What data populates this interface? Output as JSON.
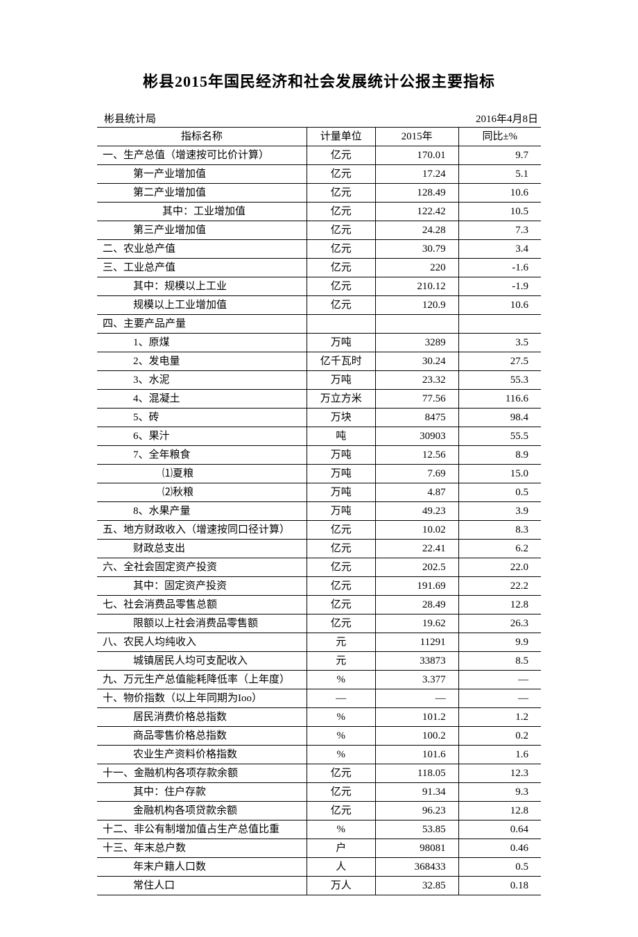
{
  "title": "彬县2015年国民经济和社会发展统计公报主要指标",
  "meta": {
    "org": "彬县统计局",
    "date": "2016年4月8日"
  },
  "columns": {
    "name": "指标名称",
    "unit": "计量单位",
    "v2015": "2015年",
    "yoy": "同比±%"
  },
  "rows": [
    {
      "indent": 0,
      "name": "一、生产总值（增速按可比价计算）",
      "unit": "亿元",
      "v2015": "170.01",
      "yoy": "9.7"
    },
    {
      "indent": 1,
      "name": "第一产业增加值",
      "unit": "亿元",
      "v2015": "17.24",
      "yoy": "5.1"
    },
    {
      "indent": 1,
      "name": "第二产业增加值",
      "unit": "亿元",
      "v2015": "128.49",
      "yoy": "10.6"
    },
    {
      "indent": 2,
      "name": "其中：工业增加值",
      "unit": "亿元",
      "v2015": "122.42",
      "yoy": "10.5"
    },
    {
      "indent": 1,
      "name": "第三产业增加值",
      "unit": "亿元",
      "v2015": "24.28",
      "yoy": "7.3"
    },
    {
      "indent": 0,
      "name": "二、农业总产值",
      "unit": "亿元",
      "v2015": "30.79",
      "yoy": "3.4"
    },
    {
      "indent": 0,
      "name": "三、工业总产值",
      "unit": "亿元",
      "v2015": "220",
      "yoy": "-1.6"
    },
    {
      "indent": 1,
      "name": "其中：规模以上工业",
      "unit": "亿元",
      "v2015": "210.12",
      "yoy": "-1.9"
    },
    {
      "indent": 1,
      "name": "规模以上工业增加值",
      "unit": "亿元",
      "v2015": "120.9",
      "yoy": "10.6"
    },
    {
      "indent": 0,
      "name": "四、主要产品产量",
      "unit": "",
      "v2015": "",
      "yoy": ""
    },
    {
      "indent": 1,
      "name": "1、原煤",
      "unit": "万吨",
      "v2015": "3289",
      "yoy": "3.5"
    },
    {
      "indent": 1,
      "name": "2、发电量",
      "unit": "亿千瓦时",
      "v2015": "30.24",
      "yoy": "27.5"
    },
    {
      "indent": 1,
      "name": "3、水泥",
      "unit": "万吨",
      "v2015": "23.32",
      "yoy": "55.3"
    },
    {
      "indent": 1,
      "name": "4、混凝土",
      "unit": "万立方米",
      "v2015": "77.56",
      "yoy": "116.6"
    },
    {
      "indent": 1,
      "name": "5、砖",
      "unit": "万块",
      "v2015": "8475",
      "yoy": "98.4"
    },
    {
      "indent": 1,
      "name": "6、果汁",
      "unit": "吨",
      "v2015": "30903",
      "yoy": "55.5"
    },
    {
      "indent": 1,
      "name": "7、全年粮食",
      "unit": "万吨",
      "v2015": "12.56",
      "yoy": "8.9"
    },
    {
      "indent": 2,
      "name": "⑴夏粮",
      "unit": "万吨",
      "v2015": "7.69",
      "yoy": "15.0"
    },
    {
      "indent": 2,
      "name": "⑵秋粮",
      "unit": "万吨",
      "v2015": "4.87",
      "yoy": "0.5"
    },
    {
      "indent": 1,
      "name": "8、水果产量",
      "unit": "万吨",
      "v2015": "49.23",
      "yoy": "3.9"
    },
    {
      "indent": 0,
      "name": "五、地方财政收入（增速按同口径计算）",
      "unit": "亿元",
      "v2015": "10.02",
      "yoy": "8.3"
    },
    {
      "indent": 1,
      "name": "财政总支出",
      "unit": "亿元",
      "v2015": "22.41",
      "yoy": "6.2"
    },
    {
      "indent": 0,
      "name": "六、全社会固定资产投资",
      "unit": "亿元",
      "v2015": "202.5",
      "yoy": "22.0"
    },
    {
      "indent": 1,
      "name": "其中：固定资产投资",
      "unit": "亿元",
      "v2015": "191.69",
      "yoy": "22.2"
    },
    {
      "indent": 0,
      "name": "七、社会消费品零售总额",
      "unit": "亿元",
      "v2015": "28.49",
      "yoy": "12.8"
    },
    {
      "indent": 1,
      "name": "限额以上社会消费品零售额",
      "unit": "亿元",
      "v2015": "19.62",
      "yoy": "26.3"
    },
    {
      "indent": 0,
      "name": "八、农民人均纯收入",
      "unit": "元",
      "v2015": "11291",
      "yoy": "9.9"
    },
    {
      "indent": 1,
      "name": "城镇居民人均可支配收入",
      "unit": "元",
      "v2015": "33873",
      "yoy": "8.5"
    },
    {
      "indent": 0,
      "name": "九、万元生产总值能耗降低率（上年度）",
      "unit": "%",
      "v2015": "3.377",
      "yoy": "—"
    },
    {
      "indent": 0,
      "name": "十、物价指数（以上年同期为Ioo）",
      "unit": "—",
      "v2015": "—",
      "yoy": "—"
    },
    {
      "indent": 1,
      "name": "居民消费价格总指数",
      "unit": "%",
      "v2015": "101.2",
      "yoy": "1.2"
    },
    {
      "indent": 1,
      "name": "商品零售价格总指数",
      "unit": "%",
      "v2015": "100.2",
      "yoy": "0.2"
    },
    {
      "indent": 1,
      "name": "农业生产资料价格指数",
      "unit": "%",
      "v2015": "101.6",
      "yoy": "1.6"
    },
    {
      "indent": 0,
      "name": "十一、金融机构各项存款余额",
      "unit": "亿元",
      "v2015": "118.05",
      "yoy": "12.3"
    },
    {
      "indent": 1,
      "name": "其中：住户存款",
      "unit": "亿元",
      "v2015": "91.34",
      "yoy": "9.3"
    },
    {
      "indent": 1,
      "name": "金融机构各项贷款余额",
      "unit": "亿元",
      "v2015": "96.23",
      "yoy": "12.8"
    },
    {
      "indent": 0,
      "name": "十二、非公有制增加值占生产总值比重",
      "unit": "%",
      "v2015": "53.85",
      "yoy": "0.64"
    },
    {
      "indent": 0,
      "name": "十三、年末总户数",
      "unit": "户",
      "v2015": "98081",
      "yoy": "0.46"
    },
    {
      "indent": 1,
      "name": "年末户籍人口数",
      "unit": "人",
      "v2015": "368433",
      "yoy": "0.5"
    },
    {
      "indent": 1,
      "name": "常住人口",
      "unit": "万人",
      "v2015": "32.85",
      "yoy": "0.18"
    }
  ],
  "style": {
    "background": "#ffffff",
    "text_color": "#000000",
    "border_color": "#000000",
    "title_fontsize": 22,
    "body_fontsize": 15,
    "font_family": "SimSun, 宋体, serif"
  }
}
